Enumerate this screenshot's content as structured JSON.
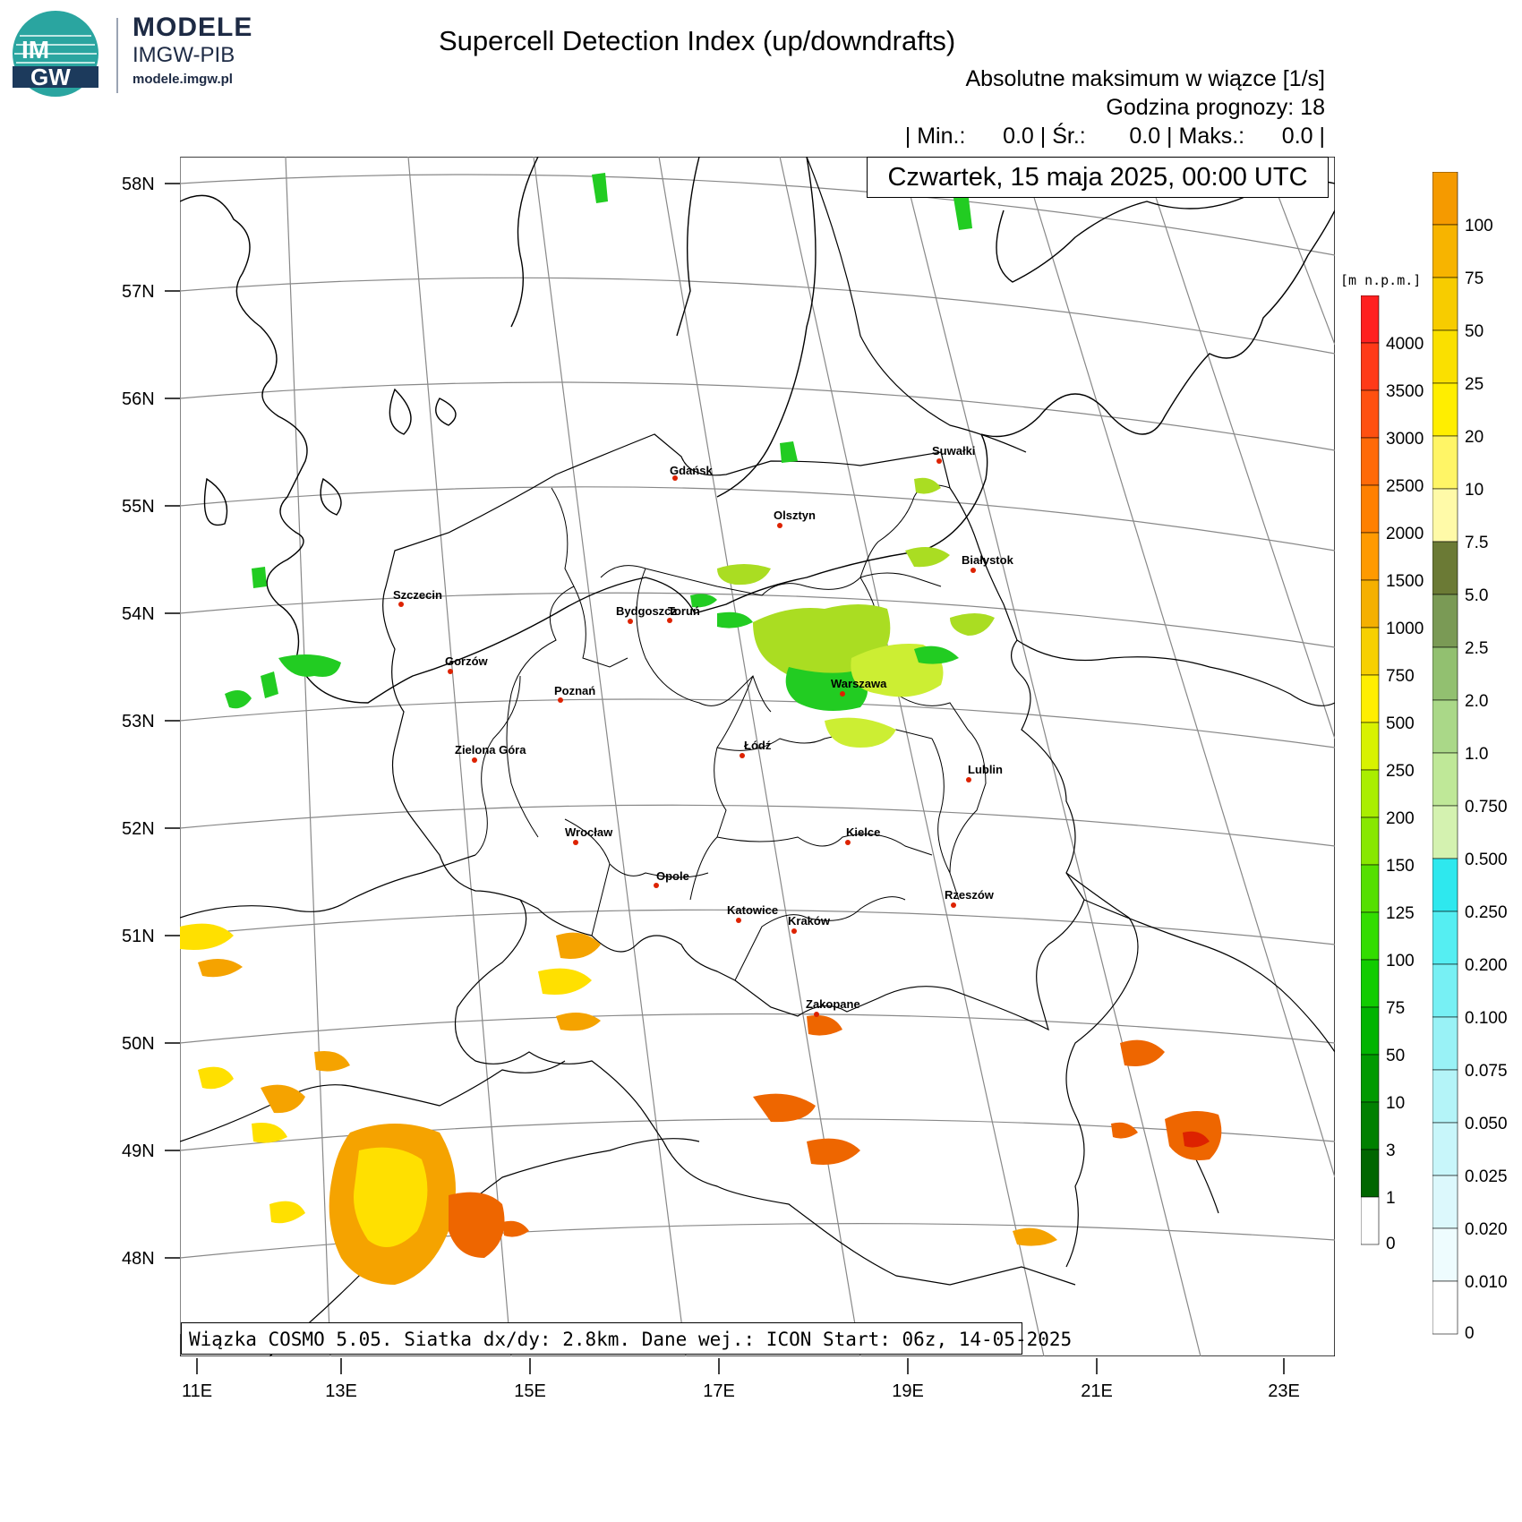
{
  "brand": {
    "logo_text_top": "IM",
    "logo_text_bottom": "GW",
    "title": "MODELE",
    "subtitle": "IMGW-PIB",
    "url": "modele.imgw.pl"
  },
  "header": {
    "title": "Supercell Detection Index (up/downdrafts)",
    "subtitle": "Absolutne maksimum w wiązce [1/s]",
    "forecast_hour": "Godzina prognozy: 18",
    "stats": "| Min.:      0.0 | Śr.:       0.0 | Maks.:      0.0 |",
    "date": "Czwartek, 15 maja 2025, 00:00 UTC"
  },
  "footer": "Wiązka COSMO 5.05. Siatka dx/dy: 2.8km. Dane wej.: ICON Start: 06z, 14-05-2025",
  "lat_labels": [
    "58N",
    "57N",
    "56N",
    "55N",
    "54N",
    "53N",
    "52N",
    "51N",
    "50N",
    "49N",
    "48N"
  ],
  "lon_labels": [
    "11E",
    "13E",
    "15E",
    "17E",
    "19E",
    "21E",
    "23E"
  ],
  "cities": [
    {
      "name": "Gdańsk"
    },
    {
      "name": "Olsztyn"
    },
    {
      "name": "Suwałki"
    },
    {
      "name": "Białystok"
    },
    {
      "name": "Szczecin"
    },
    {
      "name": "Bydgoszcz"
    },
    {
      "name": "Toruń"
    },
    {
      "name": "Gorzów"
    },
    {
      "name": "Poznań"
    },
    {
      "name": "Warszawa"
    },
    {
      "name": "Łódź"
    },
    {
      "name": "Zielona Góra"
    },
    {
      "name": "Lublin"
    },
    {
      "name": "Wrocław"
    },
    {
      "name": "Kielce"
    },
    {
      "name": "Opole"
    },
    {
      "name": "Rzeszów"
    },
    {
      "name": "Katowice"
    },
    {
      "name": "Kraków"
    },
    {
      "name": "Zakopane"
    }
  ],
  "colors": {
    "green": "#22cc22",
    "lightgreen": "#aadd22",
    "yellowgreen": "#ccee33",
    "orange": "#f5a300",
    "darkorange": "#ee6600",
    "yellow": "#ffe000",
    "red": "#dd2200"
  },
  "elevation_scale": {
    "unit": "[m n.p.m.]",
    "labels": [
      "4000",
      "3500",
      "3000",
      "2500",
      "2000",
      "1500",
      "1000",
      "750",
      "500",
      "250",
      "200",
      "150",
      "125",
      "100",
      "75",
      "50",
      "10",
      "3",
      "1",
      "0"
    ],
    "colors": [
      "#ff2020",
      "#ff3a18",
      "#ff5010",
      "#ff6a08",
      "#ff8000",
      "#ff9a00",
      "#f5b000",
      "#f7d000",
      "#ffee00",
      "#d8f200",
      "#aaee00",
      "#88e800",
      "#55e000",
      "#33dd00",
      "#11cc00",
      "#00b400",
      "#009a00",
      "#008000",
      "#006600",
      "#ffffff"
    ]
  },
  "sdi_scale": {
    "labels": [
      "100",
      "75",
      "50",
      "25",
      "20",
      "10",
      "7.5",
      "5.0",
      "2.5",
      "2.0",
      "1.0",
      "0.750",
      "0.500",
      "0.250",
      "0.200",
      "0.100",
      "0.075",
      "0.050",
      "0.025",
      "0.020",
      "0.010",
      "0"
    ],
    "colors": [
      "#f59a00",
      "#f7b400",
      "#f7cc00",
      "#fae000",
      "#ffee00",
      "#fff566",
      "#fffaa8",
      "#6b7a35",
      "#7a9a55",
      "#92c070",
      "#aad888",
      "#bfe898",
      "#d4f2b0",
      "#2ee8ee",
      "#55eef2",
      "#77f0f4",
      "#99f2f6",
      "#b4f4f8",
      "#c8f6fa",
      "#dcf8fc",
      "#eefcfe",
      "#ffffff"
    ]
  }
}
